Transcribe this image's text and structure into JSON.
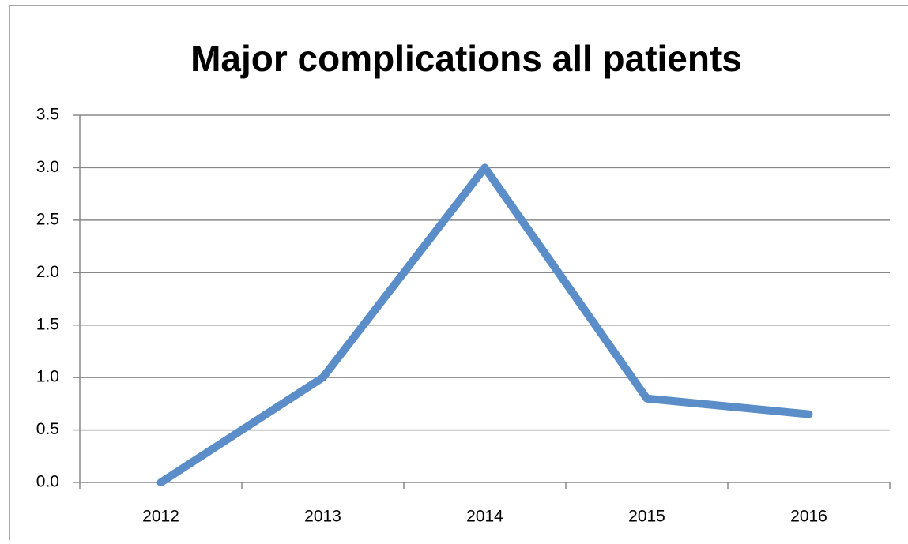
{
  "chart_data": {
    "type": "line",
    "title": "Major complications all patients",
    "categories": [
      "2012",
      "2013",
      "2014",
      "2015",
      "2016"
    ],
    "series": [
      {
        "name": "Major complications",
        "color": "#5b8ec9",
        "values": [
          0,
          1.0,
          3.0,
          0.8,
          0.65
        ]
      }
    ],
    "ylim": [
      0,
      3.5
    ],
    "yticks": [
      {
        "value": 0,
        "label": "0.0"
      },
      0.5,
      {
        "value": 1,
        "label": "1.0"
      },
      1.5,
      {
        "value": 2,
        "label": "2.0"
      },
      2.5,
      {
        "value": 3,
        "label": "3.0"
      },
      3.5
    ],
    "grid": true
  }
}
